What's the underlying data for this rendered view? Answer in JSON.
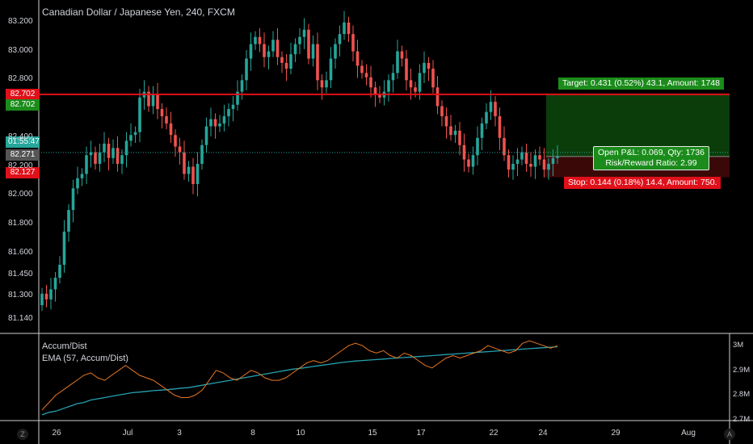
{
  "header": {
    "title": "Canadian Dollar / Japanese Yen, 240, FXCM"
  },
  "price_axis": {
    "ticks": [
      "83.200",
      "83.000",
      "82.800",
      "82.400",
      "82.200",
      "82.000",
      "81.800",
      "81.600",
      "81.450",
      "81.300",
      "81.140"
    ],
    "badges": [
      {
        "text": "82.702",
        "color": "#e0101a"
      },
      {
        "text": "82.702",
        "color": "#1b8c1b"
      },
      {
        "text": "01:55:47",
        "color": "#26a69a"
      },
      {
        "text": "82.271",
        "color": "#555555"
      },
      {
        "text": "82.127",
        "color": "#e0101a"
      }
    ]
  },
  "time_axis": {
    "ticks": [
      "26",
      "Jul",
      "3",
      "8",
      "10",
      "15",
      "17",
      "22",
      "24",
      "29",
      "Aug"
    ]
  },
  "position_tool": {
    "target_label": "Target: 0.431 (0.52%) 43.1, Amount: 1748",
    "pnl_label": "Open P&L: 0.069, Qty: 1736",
    "rr_label": "Risk/Reward Ratio: 2.99",
    "stop_label": "Stop: 0.144 (0.18%) 14.4, Amount: 750."
  },
  "indicator": {
    "name": "Accum/Dist",
    "ema_name": "EMA (57, Accum/Dist)",
    "ticks": [
      "3M",
      "2.9M",
      "2.8M",
      "2.7M"
    ]
  },
  "corner_icons": {
    "left": "Z",
    "right": "A"
  },
  "colors": {
    "background": "#000000",
    "up_candle": "#26a69a",
    "down_candle": "#ef5350",
    "resistance_line": "#e0101a",
    "target_zone": "#0b3d0b",
    "stop_zone": "#3b0808",
    "ad_line": "#e87722",
    "ema_line": "#26a1b0"
  },
  "chart_data": {
    "type": "candlestick",
    "title": "Canadian Dollar / Japanese Yen, 240, FXCM",
    "ylim": [
      81.05,
      83.3
    ],
    "date_labels": [
      "26",
      "Jul",
      "3",
      "8",
      "10",
      "15",
      "17",
      "22",
      "24",
      "29",
      "Aug"
    ],
    "resistance": 82.702,
    "current_price": 82.271,
    "position": {
      "entry": 82.271,
      "target": 82.702,
      "stop": 82.127
    },
    "closes": [
      81.32,
      81.28,
      81.35,
      81.43,
      81.52,
      81.75,
      81.9,
      82.05,
      82.12,
      82.15,
      82.28,
      82.3,
      82.22,
      82.3,
      82.36,
      82.26,
      82.33,
      82.22,
      82.28,
      82.38,
      82.42,
      82.44,
      82.68,
      82.72,
      82.62,
      82.7,
      82.6,
      82.55,
      82.5,
      82.42,
      82.34,
      82.3,
      82.15,
      82.2,
      82.08,
      82.22,
      82.35,
      82.48,
      82.53,
      82.48,
      82.5,
      82.55,
      82.6,
      82.63,
      82.72,
      82.8,
      82.95,
      83.05,
      83.1,
      83.05,
      82.96,
      83.0,
      83.08,
      82.96,
      82.92,
      82.88,
      82.98,
      83.05,
      83.1,
      83.15,
      82.95,
      83.05,
      82.8,
      82.75,
      82.8,
      82.95,
      83.05,
      83.12,
      83.2,
      83.12,
      83.0,
      82.9,
      82.85,
      82.82,
      82.75,
      82.7,
      82.68,
      82.72,
      82.8,
      82.85,
      83.0,
      82.95,
      82.8,
      82.75,
      82.72,
      82.85,
      82.92,
      82.88,
      82.75,
      82.62,
      82.55,
      82.48,
      82.42,
      82.45,
      82.35,
      82.25,
      82.2,
      82.28,
      82.4,
      82.5,
      82.58,
      82.65,
      82.55,
      82.4,
      82.28,
      82.18,
      82.22,
      82.25,
      82.3,
      82.22,
      82.2,
      82.28,
      82.25,
      82.18,
      82.22,
      82.26,
      82.27
    ],
    "ad_series": [
      2.74,
      2.77,
      2.8,
      2.82,
      2.84,
      2.86,
      2.88,
      2.89,
      2.87,
      2.86,
      2.88,
      2.9,
      2.92,
      2.9,
      2.88,
      2.87,
      2.86,
      2.84,
      2.82,
      2.8,
      2.79,
      2.79,
      2.8,
      2.82,
      2.86,
      2.9,
      2.89,
      2.87,
      2.86,
      2.88,
      2.9,
      2.89,
      2.87,
      2.86,
      2.86,
      2.87,
      2.89,
      2.91,
      2.93,
      2.94,
      2.93,
      2.94,
      2.96,
      2.98,
      3.0,
      3.01,
      3.0,
      2.98,
      2.97,
      2.98,
      2.96,
      2.95,
      2.97,
      2.96,
      2.94,
      2.92,
      2.91,
      2.93,
      2.95,
      2.96,
      2.95,
      2.96,
      2.97,
      2.98,
      3.0,
      2.99,
      2.98,
      2.97,
      2.98,
      3.01,
      3.02,
      3.01,
      3.0,
      2.99,
      3.0
    ],
    "ema_series": [
      2.72,
      2.73,
      2.735,
      2.745,
      2.755,
      2.765,
      2.77,
      2.78,
      2.785,
      2.79,
      2.795,
      2.8,
      2.805,
      2.81,
      2.812,
      2.815,
      2.818,
      2.82,
      2.822,
      2.825,
      2.828,
      2.83,
      2.835,
      2.84,
      2.845,
      2.85,
      2.855,
      2.86,
      2.865,
      2.87,
      2.875,
      2.88,
      2.885,
      2.89,
      2.895,
      2.9,
      2.905,
      2.908,
      2.912,
      2.916,
      2.92,
      2.924,
      2.928,
      2.932,
      2.935,
      2.938,
      2.94,
      2.942,
      2.944,
      2.946,
      2.948,
      2.95,
      2.952,
      2.954,
      2.956,
      2.958,
      2.96,
      2.962,
      2.964,
      2.966,
      2.968,
      2.97,
      2.972,
      2.974,
      2.976,
      2.978,
      2.98,
      2.982,
      2.984,
      2.986,
      2.988,
      2.99,
      2.992,
      2.994,
      2.996
    ],
    "ad_ylim": [
      2.7,
      3.04
    ]
  }
}
